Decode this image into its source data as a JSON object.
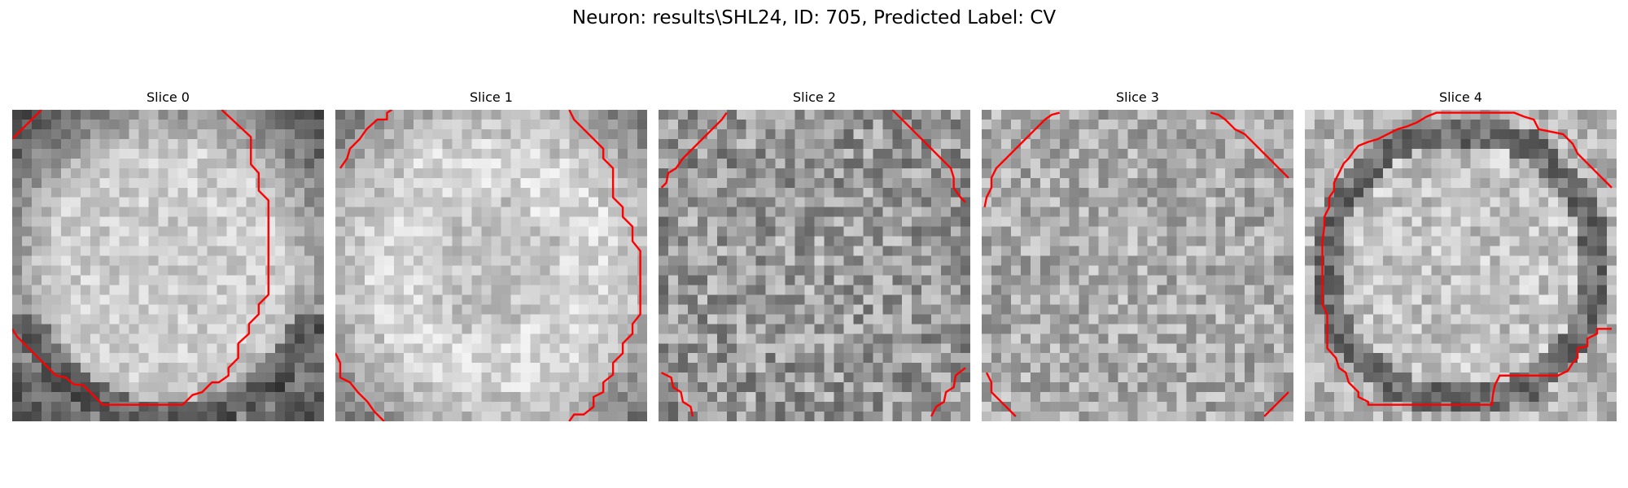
{
  "title": "Neuron: results\\SHL24, ID: 705, Predicted Label: CV",
  "colormap": "gray",
  "contour_color": "#ff0000",
  "grid_size": 32,
  "slices": [
    {
      "label": "Slice 0",
      "tone": "bright-center",
      "contours": [
        [
          [
            0,
            3
          ],
          [
            3,
            0
          ]
        ],
        [
          [
            21.5,
            0
          ],
          [
            24.5,
            2.8
          ],
          [
            24.5,
            5.6
          ],
          [
            25.3,
            6.5
          ],
          [
            25.3,
            8.3
          ],
          [
            26.3,
            9.3
          ],
          [
            26.3,
            19
          ],
          [
            25.3,
            20
          ],
          [
            25.3,
            21
          ],
          [
            24.3,
            22
          ],
          [
            24.3,
            23
          ],
          [
            23.2,
            24
          ],
          [
            23.2,
            25.5
          ],
          [
            22.2,
            26.5
          ],
          [
            22.2,
            27.3
          ],
          [
            21.2,
            28
          ],
          [
            20.5,
            28
          ],
          [
            19.5,
            29
          ],
          [
            18.5,
            29.3
          ],
          [
            17.5,
            30.3
          ],
          [
            16.5,
            30.3
          ],
          [
            15.5,
            30.3
          ],
          [
            9.3,
            30.3
          ],
          [
            8.3,
            29.3
          ],
          [
            7.3,
            28.3
          ],
          [
            6.3,
            28.2
          ],
          [
            5.5,
            27.5
          ],
          [
            4.5,
            27.3
          ],
          [
            3.5,
            26.3
          ],
          [
            2.5,
            25.3
          ],
          [
            1.5,
            24.3
          ],
          [
            0.5,
            23.3
          ],
          [
            0,
            22.5
          ]
        ]
      ]
    },
    {
      "label": "Slice 1",
      "tone": "bright-ring",
      "contours": [
        [
          [
            0.5,
            6
          ],
          [
            1.2,
            5
          ],
          [
            1.5,
            4
          ],
          [
            2.5,
            3
          ],
          [
            3.2,
            2
          ],
          [
            4.3,
            1
          ],
          [
            5.3,
            1
          ],
          [
            5.3,
            0.3
          ],
          [
            5.8,
            0
          ]
        ],
        [
          [
            24,
            0
          ],
          [
            24.5,
            1
          ],
          [
            25.5,
            2
          ],
          [
            26.5,
            3
          ],
          [
            27.5,
            4
          ],
          [
            27.5,
            5
          ],
          [
            28.5,
            6
          ],
          [
            28.5,
            7
          ],
          [
            28.5,
            9
          ],
          [
            29.5,
            10
          ],
          [
            29.5,
            11
          ],
          [
            30.5,
            12
          ],
          [
            30.5,
            13.5
          ],
          [
            31.3,
            14.5
          ],
          [
            31.3,
            21
          ],
          [
            30.5,
            22
          ],
          [
            30.5,
            23
          ],
          [
            29.5,
            24
          ],
          [
            29.5,
            25
          ],
          [
            28.5,
            26
          ],
          [
            28.5,
            27.2
          ],
          [
            27.5,
            28
          ],
          [
            27.5,
            29
          ],
          [
            26.5,
            29.5
          ],
          [
            26.5,
            30.5
          ],
          [
            25.5,
            31.3
          ],
          [
            24.5,
            31.3
          ],
          [
            24,
            32
          ]
        ],
        [
          [
            0,
            25
          ],
          [
            0.5,
            26
          ],
          [
            0.5,
            27.5
          ],
          [
            1.5,
            28
          ],
          [
            2.3,
            29
          ],
          [
            3.3,
            30
          ],
          [
            4,
            31
          ],
          [
            5,
            32
          ]
        ]
      ]
    },
    {
      "label": "Slice 2",
      "tone": "mid-noise",
      "contours": [
        [
          [
            0.3,
            8
          ],
          [
            0.8,
            7.5
          ],
          [
            1,
            6.5
          ],
          [
            1.8,
            6
          ],
          [
            2.5,
            5
          ],
          [
            3.5,
            4
          ],
          [
            4.5,
            3
          ],
          [
            5.5,
            2
          ],
          [
            6.5,
            1
          ],
          [
            7,
            0.3
          ]
        ],
        [
          [
            24,
            0
          ],
          [
            26,
            2
          ],
          [
            27,
            3
          ],
          [
            28,
            4
          ],
          [
            29,
            5
          ],
          [
            30,
            6
          ],
          [
            30.3,
            7
          ],
          [
            30.3,
            8
          ],
          [
            31,
            9
          ],
          [
            31.5,
            9.5
          ]
        ],
        [
          [
            0.3,
            27
          ],
          [
            1.3,
            27.5
          ],
          [
            1.5,
            28.5
          ],
          [
            2.3,
            29
          ],
          [
            2.5,
            30
          ],
          [
            3.3,
            30.5
          ],
          [
            3.5,
            31.5
          ]
        ],
        [
          [
            31.5,
            26.5
          ],
          [
            30.5,
            27.3
          ],
          [
            30.3,
            28.5
          ],
          [
            29.5,
            29
          ],
          [
            29.3,
            30
          ],
          [
            28.5,
            30.5
          ],
          [
            28,
            31.5
          ]
        ]
      ]
    },
    {
      "label": "Slice 3",
      "tone": "mid-noise-bright",
      "contours": [
        [
          [
            0.3,
            10
          ],
          [
            0.5,
            9
          ],
          [
            1,
            8
          ],
          [
            1,
            7
          ],
          [
            1.5,
            6
          ],
          [
            2.5,
            5
          ],
          [
            3.5,
            4
          ],
          [
            4.5,
            3
          ],
          [
            5.5,
            2
          ],
          [
            6.5,
            1
          ],
          [
            7.2,
            0.5
          ],
          [
            8,
            0.3
          ]
        ],
        [
          [
            23.5,
            0.3
          ],
          [
            24.3,
            0.5
          ],
          [
            25,
            1
          ],
          [
            25.5,
            1.5
          ],
          [
            26,
            2
          ],
          [
            27,
            2.5
          ],
          [
            28,
            3.5
          ],
          [
            29,
            4.5
          ],
          [
            30,
            5.5
          ],
          [
            31,
            6.5
          ],
          [
            31.5,
            7
          ]
        ],
        [
          [
            0.5,
            27
          ],
          [
            1,
            28
          ],
          [
            1,
            29
          ],
          [
            2,
            30
          ],
          [
            3,
            31
          ],
          [
            3.5,
            31.5
          ]
        ],
        [
          [
            31.5,
            29
          ],
          [
            30.5,
            30
          ],
          [
            29.5,
            31
          ],
          [
            29,
            31.5
          ]
        ]
      ]
    },
    {
      "label": "Slice 4",
      "tone": "dark-ring",
      "contours": [
        [
          [
            31.5,
            8
          ],
          [
            31,
            7.5
          ],
          [
            30,
            6.5
          ],
          [
            29,
            5.5
          ],
          [
            28,
            4.5
          ],
          [
            27.5,
            3.5
          ],
          [
            26.5,
            2.5
          ],
          [
            25,
            2.2
          ],
          [
            24,
            2
          ],
          [
            23.5,
            1
          ],
          [
            22.5,
            0.7
          ],
          [
            21.5,
            0.3
          ],
          [
            13.5,
            0.3
          ],
          [
            12.5,
            0.7
          ],
          [
            11.5,
            1.3
          ],
          [
            10.5,
            1.7
          ],
          [
            9.5,
            2
          ],
          [
            8.5,
            2.5
          ],
          [
            7.5,
            3
          ],
          [
            6.5,
            3.3
          ],
          [
            5.5,
            3.7
          ],
          [
            5,
            4.3
          ],
          [
            4.5,
            5
          ],
          [
            4,
            5.5
          ],
          [
            3.5,
            6.5
          ],
          [
            3,
            7.5
          ],
          [
            3,
            8.3
          ],
          [
            2.5,
            9
          ],
          [
            2.5,
            10
          ],
          [
            2,
            11
          ],
          [
            2,
            12
          ],
          [
            1.8,
            13.5
          ],
          [
            1.8,
            20
          ],
          [
            2.3,
            21
          ],
          [
            2.3,
            24.5
          ],
          [
            3.2,
            25.5
          ],
          [
            3.5,
            26.5
          ],
          [
            4.2,
            27
          ],
          [
            4.5,
            28
          ],
          [
            5.5,
            29
          ],
          [
            5.5,
            29.5
          ],
          [
            6.5,
            30
          ],
          [
            6.5,
            30.3
          ],
          [
            7.5,
            30.3
          ],
          [
            19.2,
            30.3
          ],
          [
            19.3,
            29.3
          ],
          [
            19.5,
            28.3
          ],
          [
            20,
            27.3
          ],
          [
            20.5,
            27.3
          ],
          [
            26,
            27.3
          ],
          [
            27,
            26.8
          ],
          [
            27.5,
            26
          ],
          [
            28,
            25.5
          ],
          [
            28,
            24.5
          ],
          [
            29,
            24.3
          ],
          [
            29,
            23.5
          ],
          [
            30,
            23
          ],
          [
            30,
            22.5
          ],
          [
            31.5,
            22.5
          ]
        ]
      ]
    }
  ]
}
